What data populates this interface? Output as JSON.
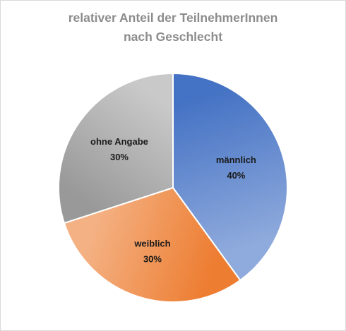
{
  "chart_data": {
    "type": "pie",
    "title_lines": [
      "relativer Anteil der TeilnehmerInnen",
      "nach Geschlecht"
    ],
    "slices": [
      {
        "label": "männlich",
        "value": 40,
        "display": "40%",
        "color_start": "#4472c4",
        "color_end": "#8faadc"
      },
      {
        "label": "weiblich",
        "value": 30,
        "display": "30%",
        "color_start": "#ed7d31",
        "color_end": "#f4b183"
      },
      {
        "label": "ohne Angabe",
        "value": 30,
        "display": "30%",
        "color_start": "#999999",
        "color_end": "#c9c9c9"
      }
    ],
    "start_angle_deg": 0,
    "direction": "clockwise",
    "legend": "none",
    "data_labels": "inside"
  }
}
